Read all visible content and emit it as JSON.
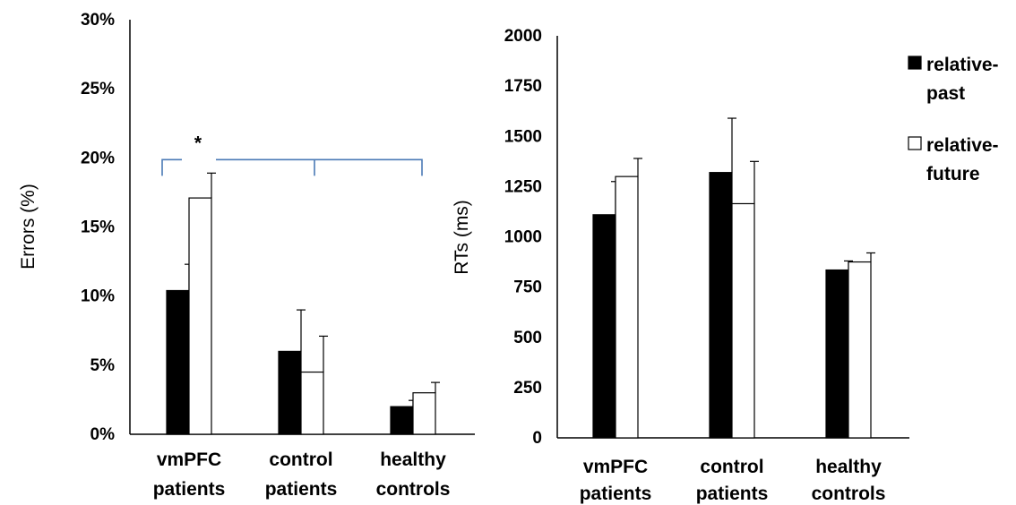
{
  "chart_data": [
    {
      "type": "bar",
      "ylabel": "Errors (%)",
      "categories": [
        [
          "vmPFC",
          "patients"
        ],
        [
          "control",
          "patients"
        ],
        [
          "healthy",
          "controls"
        ]
      ],
      "series": [
        {
          "name": "relative-past",
          "values": [
            10.4,
            6.0,
            2.0
          ],
          "errors": [
            1.9,
            3.0,
            0.45
          ],
          "fill": "#000000"
        },
        {
          "name": "relative-future",
          "values": [
            17.1,
            4.5,
            3.0
          ],
          "errors": [
            1.8,
            2.6,
            0.75
          ],
          "fill": "#ffffff"
        }
      ],
      "ylim": [
        0,
        30
      ],
      "yticks": [
        0,
        5,
        10,
        15,
        20,
        25,
        30
      ],
      "ytick_labels": [
        "0%",
        "5%",
        "10%",
        "15%",
        "20%",
        "25%",
        "30%"
      ],
      "grid": false,
      "annotation": {
        "text": "*",
        "type": "significance-bracket",
        "from_category": 0,
        "to_categories": [
          1,
          2
        ],
        "color": "#4a7ab5"
      }
    },
    {
      "type": "bar",
      "ylabel": "RTs (ms)",
      "categories": [
        [
          "vmPFC",
          "patients"
        ],
        [
          "control",
          "patients"
        ],
        [
          "healthy",
          "controls"
        ]
      ],
      "series": [
        {
          "name": "relative-past",
          "values": [
            1110,
            1320,
            835
          ],
          "errors": [
            165,
            270,
            45
          ],
          "fill": "#000000"
        },
        {
          "name": "relative-future",
          "values": [
            1300,
            1165,
            875
          ],
          "errors": [
            90,
            210,
            45
          ],
          "fill": "#ffffff"
        }
      ],
      "ylim": [
        0,
        2000
      ],
      "yticks": [
        0,
        250,
        500,
        750,
        1000,
        1250,
        1500,
        1750,
        2000
      ],
      "ytick_labels": [
        "0",
        "250",
        "500",
        "750",
        "1000",
        "1250",
        "1500",
        "1750",
        "2000"
      ],
      "grid": false,
      "legend": {
        "placement": "top-right",
        "entries": [
          {
            "lines": [
              "relative-",
              "past"
            ],
            "fill": "#000000"
          },
          {
            "lines": [
              "relative-",
              "future"
            ],
            "fill": "#ffffff"
          }
        ]
      }
    }
  ]
}
